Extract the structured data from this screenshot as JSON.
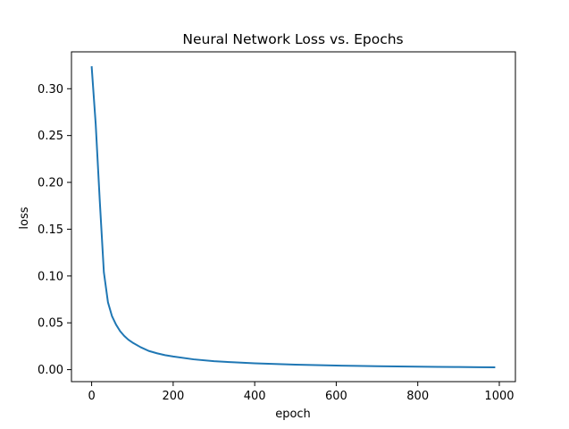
{
  "chart_data": {
    "type": "line",
    "title": "Neural Network Loss vs. Epochs",
    "xlabel": "epoch",
    "ylabel": "loss",
    "xlim": [
      -49.5,
      1039.5
    ],
    "ylim": [
      -0.0128,
      0.3394
    ],
    "xticks": [
      0,
      200,
      400,
      600,
      800,
      1000
    ],
    "xtick_labels": [
      "0",
      "200",
      "400",
      "600",
      "800",
      "1000"
    ],
    "yticks": [
      0.0,
      0.05,
      0.1,
      0.15,
      0.2,
      0.25,
      0.3
    ],
    "ytick_labels": [
      "0.00",
      "0.05",
      "0.10",
      "0.15",
      "0.20",
      "0.25",
      "0.30"
    ],
    "grid": false,
    "legend": "none",
    "series": [
      {
        "color": "#1f77b4",
        "x": [
          0,
          10,
          20,
          30,
          40,
          50,
          60,
          70,
          80,
          90,
          100,
          120,
          140,
          160,
          180,
          200,
          250,
          300,
          350,
          400,
          450,
          500,
          550,
          600,
          650,
          700,
          750,
          800,
          850,
          900,
          950,
          990
        ],
        "y": [
          0.324,
          0.262,
          0.18,
          0.104,
          0.072,
          0.057,
          0.048,
          0.041,
          0.036,
          0.032,
          0.029,
          0.024,
          0.02,
          0.0175,
          0.0155,
          0.014,
          0.011,
          0.009,
          0.0078,
          0.0068,
          0.006,
          0.0053,
          0.0048,
          0.0044,
          0.004,
          0.0037,
          0.0034,
          0.0032,
          0.003,
          0.0028,
          0.0026,
          0.0025
        ]
      }
    ]
  }
}
